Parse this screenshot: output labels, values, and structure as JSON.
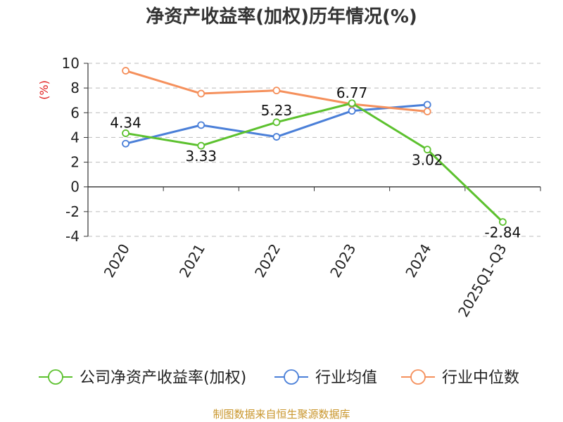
{
  "chart_data": {
    "type": "line",
    "title": "净资产收益率(加权)历年情况(%)",
    "ylabel": "(%)",
    "xlabel": "",
    "categories": [
      "2020",
      "2021",
      "2022",
      "2023",
      "2024",
      "2025Q1-Q3"
    ],
    "ylim": [
      -4,
      10
    ],
    "yticks": [
      -4,
      -2,
      0,
      2,
      4,
      6,
      8,
      10
    ],
    "grid": true,
    "legend_position": "bottom",
    "series": [
      {
        "name": "公司净资产收益率(加权)",
        "color": "#5cc12e",
        "values": [
          4.34,
          3.33,
          5.23,
          6.77,
          3.02,
          -2.84
        ],
        "labels": [
          "4.34",
          "3.33",
          "5.23",
          "6.77",
          "3.02",
          "-2.84"
        ]
      },
      {
        "name": "行业均值",
        "color": "#4a7fd8",
        "values": [
          3.5,
          5.0,
          4.05,
          6.15,
          6.65,
          null
        ]
      },
      {
        "name": "行业中位数",
        "color": "#f5905c",
        "values": [
          9.4,
          7.55,
          7.8,
          6.7,
          6.1,
          null
        ]
      }
    ]
  },
  "footer": {
    "source": "制图数据来自恒生聚源数据库"
  }
}
